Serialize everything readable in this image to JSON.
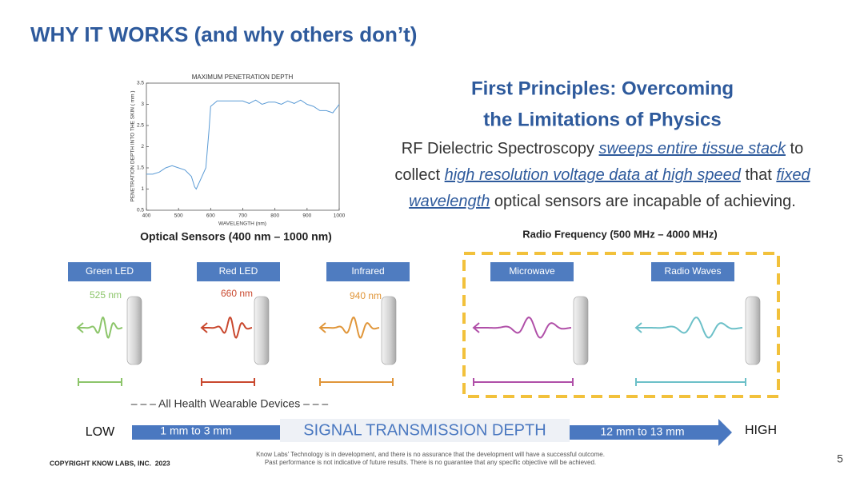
{
  "title": "WHY IT WORKS (and why others don’t)",
  "chart": {
    "type": "line",
    "title": "MAXIMUM PENETRATION DEPTH",
    "x_label": "WAVELENGTH (nm)",
    "y_label": "PENETRATION DEPTH INTO THE SKIN ( mm )",
    "x": [
      400,
      420,
      440,
      460,
      480,
      500,
      520,
      540,
      550,
      555,
      570,
      585,
      595,
      600,
      620,
      650,
      680,
      700,
      720,
      740,
      760,
      780,
      800,
      820,
      840,
      860,
      880,
      900,
      920,
      940,
      960,
      980,
      1000
    ],
    "values": [
      1.35,
      1.35,
      1.4,
      1.5,
      1.55,
      1.5,
      1.45,
      1.3,
      1.05,
      1.0,
      1.25,
      1.5,
      2.4,
      2.95,
      3.08,
      3.08,
      3.08,
      3.08,
      3.02,
      3.1,
      3.0,
      3.05,
      3.05,
      3.0,
      3.08,
      3.02,
      3.1,
      3.0,
      2.95,
      2.85,
      2.85,
      2.8,
      3.0
    ],
    "color": "#5b9bd5",
    "xlim": [
      400,
      1000
    ],
    "ylim": [
      0.5,
      3.5
    ],
    "xticks": [
      400,
      500,
      600,
      700,
      800,
      900,
      1000
    ],
    "yticks": [
      0.5,
      1,
      1.5,
      2,
      2.5,
      3,
      3.5
    ]
  },
  "left_caption": "Optical Sensors (400 nm – 1000 nm)",
  "heading": [
    "First Principles: Overcoming",
    "the Limitations of Physics"
  ],
  "paragraph": [
    [
      {
        "text": "RF Dielectric Spectroscopy ",
        "emphasis": false
      },
      {
        "text": "sweeps entire tissue stack",
        "emphasis": true
      },
      {
        "text": " to",
        "emphasis": false
      }
    ],
    [
      {
        "text": "collect ",
        "emphasis": false
      },
      {
        "text": "high resolution voltage data at high speed",
        "emphasis": true
      },
      {
        "text": " that ",
        "emphasis": false
      },
      {
        "text": "fixed",
        "emphasis": true
      }
    ],
    [
      {
        "text": "wavelength",
        "emphasis": true
      },
      {
        "text": " optical sensors are incapable of achieving.",
        "emphasis": false
      }
    ]
  ],
  "right_caption": "Radio Frequency (500 MHz – 4000 MHz)",
  "sensors": [
    {
      "label": "Green LED",
      "wavelength": "525 nm",
      "color": "#8cc56a"
    },
    {
      "label": "Red LED",
      "wavelength": "660 nm",
      "color": "#c9482e"
    },
    {
      "label": "Infrared",
      "wavelength": "940 nm",
      "color": "#e0963a"
    },
    {
      "label": "Microwave",
      "color": "#b04fa8"
    },
    {
      "label": "Radio Waves",
      "color": "#6cc0c8"
    }
  ],
  "wearables_note": "– – – All Health Wearable Devices – – –",
  "scale": {
    "low": "LOW",
    "high": "HIGH",
    "title": "SIGNAL TRANSMISSION DEPTH",
    "near": "1 mm to 3 mm",
    "far": "12 mm to 13 mm"
  },
  "copyright": "COPYRIGHT KNOW LABS, INC.  2023",
  "disclaimer": [
    "Know Labs' Technology is in development, and there is no assurance that the development will have a successful outcome.",
    "Past performance is not indicative of future results. There is no guarantee that any specific objective will be achieved."
  ],
  "page_number": "5"
}
